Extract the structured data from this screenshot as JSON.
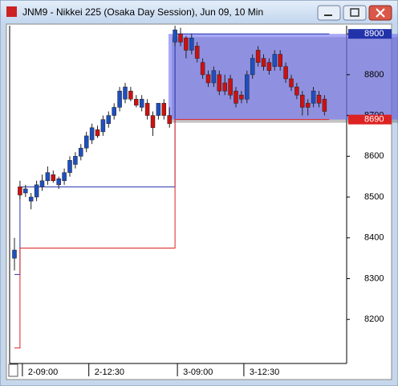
{
  "window": {
    "title": "JNM9 - Nikkei 225 (Osaka Day Session), Jun 09, 10 Min"
  },
  "chart_data": {
    "type": "candlestick",
    "categories": [
      null,
      "2-09:00",
      null,
      null,
      null,
      null,
      null,
      null,
      null,
      null,
      null,
      null,
      null,
      "2-12:30",
      null,
      null,
      null,
      null,
      null,
      null,
      null,
      null,
      null,
      null,
      null,
      null,
      null,
      null,
      null,
      "3-09:00",
      null,
      null,
      null,
      null,
      null,
      null,
      null,
      null,
      null,
      null,
      null,
      "3-12:30",
      null,
      null,
      null,
      null,
      null,
      null,
      null,
      null,
      null,
      null,
      null,
      null,
      null,
      null,
      null
    ],
    "open": [
      8350,
      8525,
      8510,
      8490,
      8500,
      8525,
      8540,
      8555,
      8530,
      8540,
      8560,
      8580,
      8600,
      8620,
      8640,
      8665,
      8660,
      8680,
      8700,
      8720,
      8740,
      8760,
      8740,
      8720,
      8730,
      8700,
      8700,
      8730,
      8700,
      8880,
      8900,
      8890,
      8860,
      8870,
      8830,
      8800,
      8780,
      8800,
      8780,
      8790,
      8760,
      8750,
      8740,
      8800,
      8860,
      8840,
      8830,
      8820,
      8850,
      8820,
      8790,
      8770,
      8750,
      8730,
      8730,
      8750,
      8740
    ],
    "high": [
      8400,
      8540,
      8530,
      8510,
      8540,
      8555,
      8575,
      8565,
      8550,
      8570,
      8600,
      8610,
      8630,
      8660,
      8680,
      8675,
      8700,
      8710,
      8730,
      8770,
      8780,
      8770,
      8750,
      8750,
      8740,
      8710,
      8730,
      8740,
      8720,
      8920,
      8915,
      8895,
      8900,
      8880,
      8840,
      8810,
      8820,
      8810,
      8800,
      8800,
      8770,
      8760,
      8810,
      8850,
      8870,
      8850,
      8840,
      8860,
      8860,
      8830,
      8800,
      8780,
      8760,
      8740,
      8770,
      8760,
      8750
    ],
    "low": [
      8320,
      8495,
      8500,
      8470,
      8490,
      8515,
      8530,
      8535,
      8520,
      8530,
      8550,
      8570,
      8590,
      8610,
      8630,
      8645,
      8650,
      8670,
      8690,
      8710,
      8730,
      8735,
      8720,
      8710,
      8690,
      8650,
      8690,
      8690,
      8670,
      8870,
      8870,
      8840,
      8850,
      8830,
      8790,
      8770,
      8770,
      8750,
      8750,
      8740,
      8720,
      8730,
      8730,
      8790,
      8820,
      8810,
      8800,
      8810,
      8810,
      8780,
      8760,
      8740,
      8700,
      8700,
      8720,
      8720,
      8700
    ],
    "close": [
      8370,
      8505,
      8520,
      8500,
      8530,
      8540,
      8560,
      8540,
      8545,
      8560,
      8590,
      8600,
      8620,
      8650,
      8670,
      8650,
      8690,
      8700,
      8720,
      8760,
      8770,
      8740,
      8725,
      8740,
      8700,
      8670,
      8730,
      8700,
      8680,
      8910,
      8880,
      8860,
      8890,
      8840,
      8800,
      8780,
      8810,
      8760,
      8760,
      8750,
      8730,
      8740,
      8800,
      8840,
      8830,
      8820,
      8810,
      8850,
      8820,
      8790,
      8770,
      8750,
      8720,
      8720,
      8760,
      8730,
      8710
    ],
    "up_color": "#1f4fbf",
    "down_color": "#cc1111",
    "lines": [
      {
        "color": "#2233aa",
        "values": [
          8310,
          8525,
          8525,
          8525,
          8525,
          8525,
          8525,
          8525,
          8525,
          8525,
          8525,
          8525,
          8525,
          8525,
          8525,
          8525,
          8525,
          8525,
          8525,
          8525,
          8525,
          8525,
          8525,
          8525,
          8525,
          8525,
          8525,
          8525,
          8525,
          8900,
          8900,
          8900,
          8900,
          8900,
          8900,
          8900,
          8900,
          8900,
          8900,
          8900,
          8900,
          8900,
          8900,
          8900,
          8900,
          8900,
          8900,
          8900,
          8900,
          8900,
          8900,
          8900,
          8900,
          8900,
          8900,
          8900,
          8900
        ]
      },
      {
        "color": "#dd2222",
        "values": [
          8130,
          8375,
          8375,
          8375,
          8375,
          8375,
          8375,
          8375,
          8375,
          8375,
          8375,
          8375,
          8375,
          8375,
          8375,
          8375,
          8375,
          8375,
          8375,
          8375,
          8375,
          8375,
          8375,
          8375,
          8375,
          8375,
          8375,
          8375,
          8375,
          8690,
          8690,
          8690,
          8690,
          8690,
          8690,
          8690,
          8690,
          8690,
          8690,
          8690,
          8690,
          8690,
          8690,
          8690,
          8690,
          8690,
          8690,
          8690,
          8690,
          8690,
          8690,
          8690,
          8690,
          8690,
          8690,
          8690,
          8690
        ]
      }
    ],
    "ylim": [
      8092,
      8920
    ],
    "yticks": [
      8200,
      8300,
      8400,
      8500,
      8600,
      8700,
      8800,
      8900
    ],
    "grid": false
  }
}
